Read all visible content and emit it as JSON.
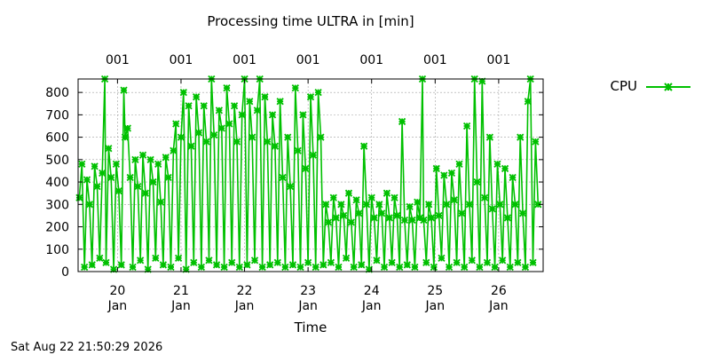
{
  "chart_data": {
    "type": "line",
    "title": "Processing time ULTRA in [min]",
    "xlabel": "Time",
    "ylabel": "",
    "ylim": [
      0,
      860
    ],
    "y_ticks": [
      0,
      100,
      200,
      300,
      400,
      500,
      600,
      700,
      800
    ],
    "x_ticks": [
      {
        "day": 20,
        "label_day": "20",
        "label_month": "Jan"
      },
      {
        "day": 21,
        "label_day": "21",
        "label_month": "Jan"
      },
      {
        "day": 22,
        "label_day": "22",
        "label_month": "Jan"
      },
      {
        "day": 23,
        "label_day": "23",
        "label_month": "Jan"
      },
      {
        "day": 24,
        "label_day": "24",
        "label_month": "Jan"
      },
      {
        "day": 25,
        "label_day": "25",
        "label_month": "Jan"
      },
      {
        "day": 26,
        "label_day": "26",
        "label_month": "Jan"
      }
    ],
    "x2_ticks": [
      "001",
      "001",
      "001",
      "001",
      "001",
      "001",
      "001"
    ],
    "grid": true,
    "legend_position": "top-right, outside plot",
    "series": [
      {
        "name": "CPU",
        "color": "#00c000",
        "marker": "x-cross",
        "points": [
          [
            19.4,
            330
          ],
          [
            19.44,
            480
          ],
          [
            19.48,
            20
          ],
          [
            19.52,
            410
          ],
          [
            19.56,
            300
          ],
          [
            19.6,
            30
          ],
          [
            19.64,
            470
          ],
          [
            19.68,
            380
          ],
          [
            19.72,
            60
          ],
          [
            19.76,
            440
          ],
          [
            19.8,
            860
          ],
          [
            19.82,
            40
          ],
          [
            19.86,
            550
          ],
          [
            19.9,
            420
          ],
          [
            19.94,
            10
          ],
          [
            19.98,
            480
          ],
          [
            20.02,
            360
          ],
          [
            20.06,
            30
          ],
          [
            20.1,
            810
          ],
          [
            20.12,
            600
          ],
          [
            20.16,
            640
          ],
          [
            20.2,
            420
          ],
          [
            20.24,
            20
          ],
          [
            20.28,
            500
          ],
          [
            20.32,
            380
          ],
          [
            20.36,
            50
          ],
          [
            20.4,
            520
          ],
          [
            20.44,
            350
          ],
          [
            20.48,
            10
          ],
          [
            20.52,
            500
          ],
          [
            20.56,
            400
          ],
          [
            20.6,
            60
          ],
          [
            20.64,
            480
          ],
          [
            20.68,
            310
          ],
          [
            20.72,
            30
          ],
          [
            20.76,
            510
          ],
          [
            20.8,
            420
          ],
          [
            20.84,
            20
          ],
          [
            20.88,
            540
          ],
          [
            20.92,
            660
          ],
          [
            20.96,
            60
          ],
          [
            21.0,
            600
          ],
          [
            21.04,
            800
          ],
          [
            21.08,
            10
          ],
          [
            21.12,
            740
          ],
          [
            21.16,
            560
          ],
          [
            21.2,
            40
          ],
          [
            21.24,
            780
          ],
          [
            21.28,
            620
          ],
          [
            21.32,
            20
          ],
          [
            21.36,
            740
          ],
          [
            21.4,
            580
          ],
          [
            21.44,
            50
          ],
          [
            21.48,
            860
          ],
          [
            21.52,
            610
          ],
          [
            21.56,
            30
          ],
          [
            21.6,
            720
          ],
          [
            21.64,
            640
          ],
          [
            21.68,
            20
          ],
          [
            21.72,
            820
          ],
          [
            21.76,
            660
          ],
          [
            21.8,
            40
          ],
          [
            21.84,
            740
          ],
          [
            21.88,
            580
          ],
          [
            21.92,
            20
          ],
          [
            21.96,
            700
          ],
          [
            22.0,
            860
          ],
          [
            22.04,
            30
          ],
          [
            22.08,
            760
          ],
          [
            22.12,
            600
          ],
          [
            22.16,
            50
          ],
          [
            22.2,
            720
          ],
          [
            22.24,
            860
          ],
          [
            22.28,
            20
          ],
          [
            22.32,
            780
          ],
          [
            22.36,
            580
          ],
          [
            22.4,
            30
          ],
          [
            22.44,
            700
          ],
          [
            22.48,
            560
          ],
          [
            22.52,
            40
          ],
          [
            22.56,
            760
          ],
          [
            22.6,
            420
          ],
          [
            22.64,
            20
          ],
          [
            22.68,
            600
          ],
          [
            22.72,
            380
          ],
          [
            22.76,
            30
          ],
          [
            22.8,
            820
          ],
          [
            22.84,
            540
          ],
          [
            22.88,
            20
          ],
          [
            22.92,
            700
          ],
          [
            22.96,
            460
          ],
          [
            23.0,
            40
          ],
          [
            23.04,
            780
          ],
          [
            23.08,
            520
          ],
          [
            23.12,
            20
          ],
          [
            23.16,
            800
          ],
          [
            23.2,
            600
          ],
          [
            23.24,
            30
          ],
          [
            23.28,
            300
          ],
          [
            23.32,
            220
          ],
          [
            23.36,
            40
          ],
          [
            23.4,
            330
          ],
          [
            23.44,
            240
          ],
          [
            23.48,
            20
          ],
          [
            23.52,
            300
          ],
          [
            23.56,
            250
          ],
          [
            23.6,
            60
          ],
          [
            23.64,
            350
          ],
          [
            23.68,
            220
          ],
          [
            23.72,
            20
          ],
          [
            23.76,
            320
          ],
          [
            23.8,
            260
          ],
          [
            23.84,
            30
          ],
          [
            23.88,
            560
          ],
          [
            23.92,
            300
          ],
          [
            23.96,
            10
          ],
          [
            24.0,
            330
          ],
          [
            24.04,
            240
          ],
          [
            24.08,
            50
          ],
          [
            24.12,
            300
          ],
          [
            24.16,
            260
          ],
          [
            24.2,
            20
          ],
          [
            24.24,
            350
          ],
          [
            24.28,
            240
          ],
          [
            24.32,
            40
          ],
          [
            24.36,
            330
          ],
          [
            24.4,
            250
          ],
          [
            24.44,
            20
          ],
          [
            24.48,
            670
          ],
          [
            24.52,
            230
          ],
          [
            24.56,
            30
          ],
          [
            24.6,
            290
          ],
          [
            24.64,
            230
          ],
          [
            24.68,
            20
          ],
          [
            24.72,
            310
          ],
          [
            24.76,
            240
          ],
          [
            24.8,
            860
          ],
          [
            24.82,
            230
          ],
          [
            24.86,
            40
          ],
          [
            24.9,
            300
          ],
          [
            24.94,
            240
          ],
          [
            24.98,
            20
          ],
          [
            25.02,
            460
          ],
          [
            25.06,
            250
          ],
          [
            25.1,
            60
          ],
          [
            25.14,
            430
          ],
          [
            25.18,
            300
          ],
          [
            25.22,
            20
          ],
          [
            25.26,
            440
          ],
          [
            25.3,
            320
          ],
          [
            25.34,
            40
          ],
          [
            25.38,
            480
          ],
          [
            25.42,
            260
          ],
          [
            25.46,
            20
          ],
          [
            25.5,
            650
          ],
          [
            25.54,
            300
          ],
          [
            25.58,
            50
          ],
          [
            25.62,
            860
          ],
          [
            25.66,
            400
          ],
          [
            25.7,
            20
          ],
          [
            25.74,
            850
          ],
          [
            25.78,
            330
          ],
          [
            25.82,
            40
          ],
          [
            25.86,
            600
          ],
          [
            25.9,
            280
          ],
          [
            25.94,
            20
          ],
          [
            25.98,
            480
          ],
          [
            26.02,
            300
          ],
          [
            26.06,
            50
          ],
          [
            26.1,
            460
          ],
          [
            26.14,
            240
          ],
          [
            26.18,
            20
          ],
          [
            26.22,
            420
          ],
          [
            26.26,
            300
          ],
          [
            26.3,
            40
          ],
          [
            26.34,
            600
          ],
          [
            26.38,
            260
          ],
          [
            26.42,
            20
          ],
          [
            26.46,
            760
          ],
          [
            26.5,
            860
          ],
          [
            26.54,
            40
          ],
          [
            26.58,
            580
          ],
          [
            26.62,
            300
          ]
        ]
      }
    ]
  },
  "footer": {
    "timestamp": "Sat Aug 22 21:50:29 2026"
  }
}
